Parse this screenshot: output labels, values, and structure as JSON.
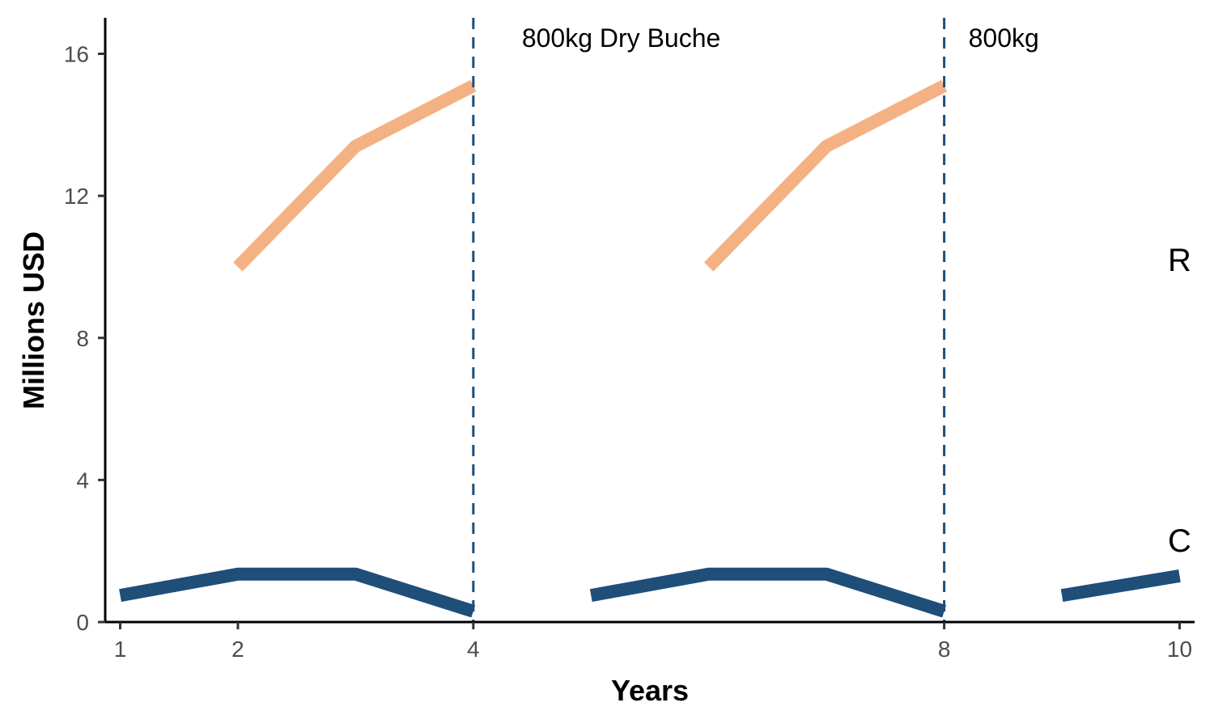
{
  "chart_data": {
    "type": "line",
    "title": "",
    "xlabel": "Years",
    "ylabel": "Millions USD",
    "xlim": [
      1,
      10
    ],
    "ylim": [
      0,
      17
    ],
    "x_ticks": [
      1,
      2,
      4,
      8,
      10
    ],
    "y_ticks": [
      0,
      4,
      8,
      12,
      16
    ],
    "grid": false,
    "legend": "none",
    "series": [
      {
        "label": "R",
        "color": "#F4B183",
        "segments": [
          [
            {
              "x": 2,
              "y": 10.0
            },
            {
              "x": 3,
              "y": 13.4
            },
            {
              "x": 4,
              "y": 15.1
            }
          ],
          [
            {
              "x": 6,
              "y": 10.0
            },
            {
              "x": 7,
              "y": 13.4
            },
            {
              "x": 8,
              "y": 15.1
            }
          ]
        ]
      },
      {
        "label": "C",
        "color": "#1F4E79",
        "segments": [
          [
            {
              "x": 1,
              "y": 0.75
            },
            {
              "x": 2,
              "y": 1.35
            },
            {
              "x": 3,
              "y": 1.35
            },
            {
              "x": 4,
              "y": 0.3
            }
          ],
          [
            {
              "x": 5,
              "y": 0.75
            },
            {
              "x": 6,
              "y": 1.35
            },
            {
              "x": 7,
              "y": 1.35
            },
            {
              "x": 8,
              "y": 0.3
            }
          ],
          [
            {
              "x": 9,
              "y": 0.75
            },
            {
              "x": 10,
              "y": 1.3
            }
          ]
        ]
      }
    ],
    "vlines": [
      {
        "x": 4,
        "label": "800kg Dry Buche",
        "color": "#1F4E79",
        "style": "dashed"
      },
      {
        "x": 8,
        "label": "800kg",
        "color": "#1F4E79",
        "style": "dashed"
      }
    ]
  }
}
